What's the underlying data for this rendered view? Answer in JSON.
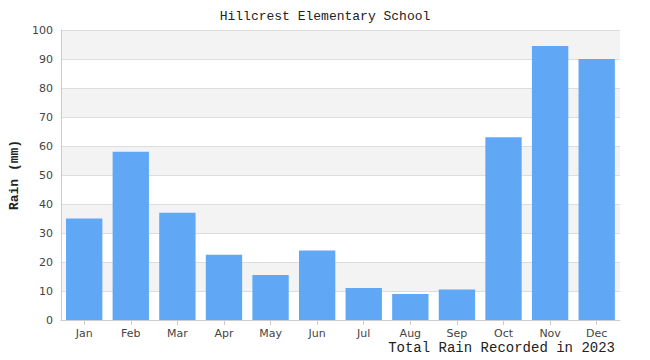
{
  "chart_data": {
    "type": "bar",
    "title": "Hillcrest Elementary School",
    "ylabel": "Rain (mm)",
    "xlabel": "Total Rain Recorded in 2023",
    "categories": [
      "Jan",
      "Feb",
      "Mar",
      "Apr",
      "May",
      "Jun",
      "Jul",
      "Aug",
      "Sep",
      "Oct",
      "Nov",
      "Dec"
    ],
    "values": [
      35,
      58,
      37,
      22.5,
      15.5,
      24,
      11,
      9,
      10.5,
      63,
      94.5,
      90
    ],
    "color": "#60a8f6",
    "ylim": [
      0,
      100
    ],
    "yticks": [
      0,
      10,
      20,
      30,
      40,
      50,
      60,
      70,
      80,
      90,
      100
    ],
    "grid": true
  }
}
